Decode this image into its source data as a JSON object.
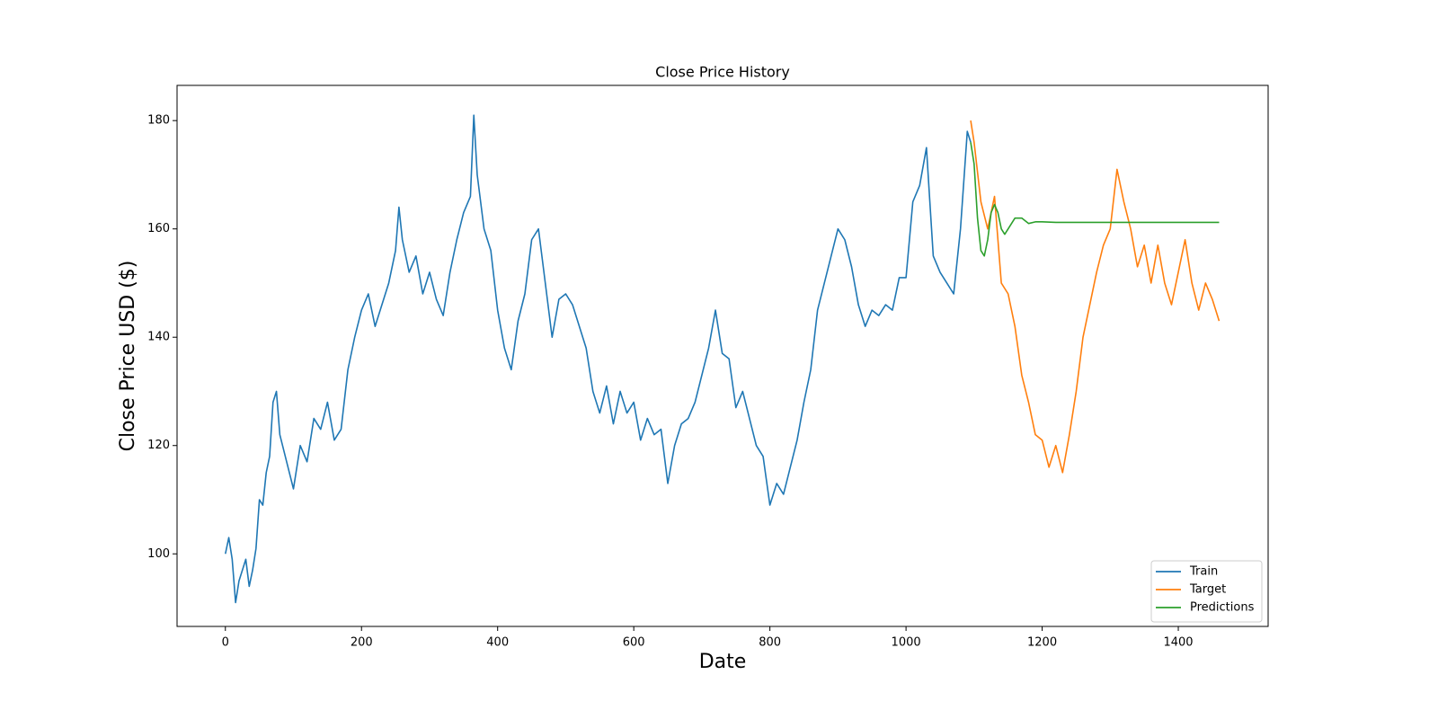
{
  "chart_data": {
    "type": "line",
    "title": "Close Price History",
    "x_label": "Date",
    "y_label": "Close Price USD ($)",
    "xlim": [
      -71,
      1532
    ],
    "ylim": [
      86.6,
      186.5
    ],
    "xticks": [
      0,
      200,
      400,
      600,
      800,
      1000,
      1200,
      1400
    ],
    "yticks": [
      100,
      120,
      140,
      160,
      180
    ],
    "grid": false,
    "legend": "lower right",
    "series": [
      {
        "name": "Train",
        "color": "#1f77b4",
        "x": [
          0,
          5,
          10,
          15,
          20,
          25,
          30,
          35,
          40,
          45,
          50,
          55,
          60,
          65,
          70,
          75,
          80,
          90,
          100,
          110,
          120,
          130,
          140,
          150,
          160,
          170,
          180,
          190,
          200,
          210,
          220,
          230,
          240,
          250,
          255,
          260,
          270,
          280,
          290,
          300,
          310,
          320,
          330,
          340,
          350,
          360,
          365,
          370,
          380,
          390,
          400,
          410,
          420,
          430,
          440,
          450,
          460,
          470,
          480,
          490,
          500,
          510,
          520,
          530,
          540,
          550,
          560,
          570,
          580,
          590,
          600,
          610,
          620,
          630,
          640,
          650,
          660,
          670,
          680,
          690,
          700,
          710,
          720,
          730,
          740,
          750,
          760,
          770,
          780,
          790,
          800,
          810,
          820,
          830,
          840,
          850,
          860,
          870,
          880,
          890,
          900,
          910,
          920,
          930,
          940,
          950,
          960,
          970,
          980,
          990,
          1000,
          1010,
          1020,
          1030,
          1040,
          1050,
          1060,
          1070,
          1080,
          1090,
          1095
        ],
        "values": [
          100,
          103,
          99,
          91,
          95,
          97,
          99,
          94,
          97,
          101,
          110,
          109,
          115,
          118,
          128,
          130,
          122,
          117,
          112,
          120,
          117,
          125,
          123,
          128,
          121,
          123,
          134,
          140,
          145,
          148,
          142,
          146,
          150,
          156,
          164,
          158,
          152,
          155,
          148,
          152,
          147,
          144,
          152,
          158,
          163,
          166,
          181,
          170,
          160,
          156,
          145,
          138,
          134,
          143,
          148,
          158,
          160,
          150,
          140,
          147,
          148,
          146,
          142,
          138,
          130,
          126,
          131,
          124,
          130,
          126,
          128,
          121,
          125,
          122,
          123,
          113,
          120,
          124,
          125,
          128,
          133,
          138,
          145,
          137,
          136,
          127,
          130,
          125,
          120,
          118,
          109,
          113,
          111,
          116,
          121,
          128,
          134,
          145,
          150,
          155,
          160,
          158,
          153,
          146,
          142,
          145,
          144,
          146,
          145,
          151,
          151,
          165,
          168,
          175,
          155,
          152,
          150,
          148,
          160,
          178,
          176
        ]
      },
      {
        "name": "Target",
        "color": "#ff7f0e",
        "x": [
          1095,
          1100,
          1110,
          1120,
          1130,
          1140,
          1150,
          1160,
          1170,
          1180,
          1190,
          1200,
          1210,
          1220,
          1230,
          1240,
          1250,
          1260,
          1270,
          1280,
          1290,
          1300,
          1310,
          1320,
          1330,
          1340,
          1350,
          1360,
          1370,
          1380,
          1390,
          1400,
          1410,
          1420,
          1430,
          1440,
          1450,
          1460
        ],
        "values": [
          180,
          176,
          165,
          160,
          166,
          150,
          148,
          142,
          133,
          128,
          122,
          121,
          116,
          120,
          115,
          122,
          130,
          140,
          146,
          152,
          157,
          160,
          171,
          165,
          160,
          153,
          157,
          150,
          157,
          150,
          146,
          152,
          158,
          150,
          145,
          150,
          147,
          143
        ]
      },
      {
        "name": "Predictions",
        "color": "#2ca02c",
        "x": [
          1095,
          1100,
          1105,
          1110,
          1115,
          1120,
          1125,
          1130,
          1135,
          1140,
          1145,
          1150,
          1160,
          1170,
          1180,
          1190,
          1200,
          1220,
          1250,
          1300,
          1400,
          1460
        ],
        "values": [
          176,
          172,
          162,
          156,
          155,
          158,
          163,
          164.5,
          163,
          160,
          159,
          160,
          162,
          162,
          161,
          161.3,
          161.3,
          161.2,
          161.2,
          161.2,
          161.2,
          161.2
        ]
      }
    ]
  }
}
